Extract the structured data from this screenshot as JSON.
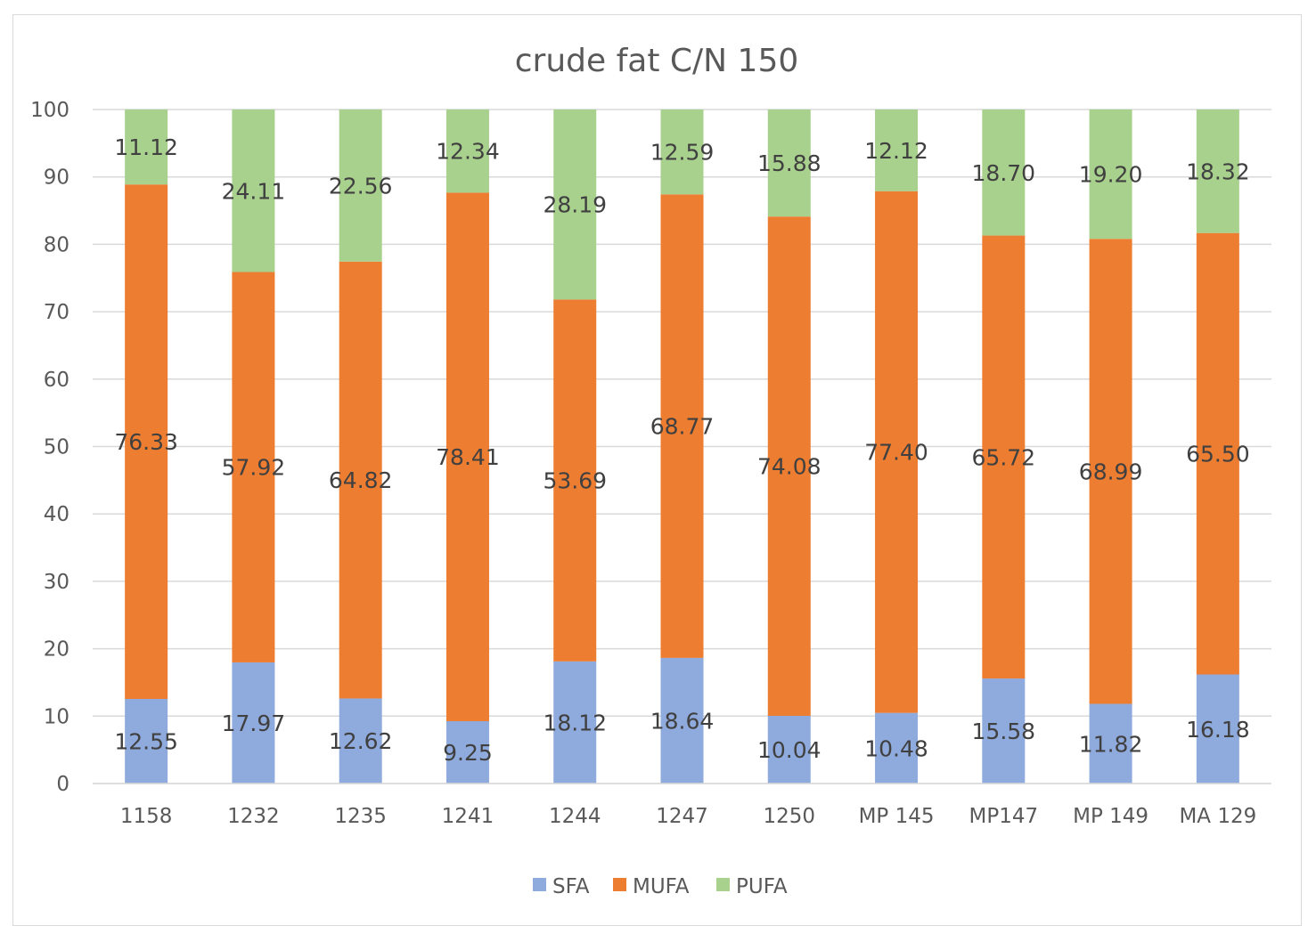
{
  "chart_data": {
    "type": "bar",
    "stacked": true,
    "title": "crude fat C/N 150",
    "xlabel": "",
    "ylabel": "",
    "ylim": [
      0,
      100
    ],
    "yticks": [
      0,
      10,
      20,
      30,
      40,
      50,
      60,
      70,
      80,
      90,
      100
    ],
    "grid": true,
    "legend_position": "bottom",
    "categories": [
      "1158",
      "1232",
      "1235",
      "1241",
      "1244",
      "1247",
      "1250",
      "MP 145",
      "MP147",
      "MP 149",
      "MA 129"
    ],
    "series": [
      {
        "name": "SFA",
        "color": "#8faadc",
        "values": [
          12.55,
          17.97,
          12.62,
          9.25,
          18.12,
          18.64,
          10.04,
          10.48,
          15.58,
          11.82,
          16.18
        ],
        "labels": [
          "12.55",
          "17.97",
          "12.62",
          "9.25",
          "18.12",
          "18.64",
          "10.04",
          "10.48",
          "15.58",
          "11.82",
          "16.18"
        ]
      },
      {
        "name": "MUFA",
        "color": "#ed7d31",
        "values": [
          76.33,
          57.92,
          64.82,
          78.41,
          53.69,
          68.77,
          74.08,
          77.4,
          65.72,
          68.99,
          65.5
        ],
        "labels": [
          "76.33",
          "57.92",
          "64.82",
          "78.41",
          "53.69",
          "68.77",
          "74.08",
          "77.40",
          "65.72",
          "68.99",
          "65.50"
        ]
      },
      {
        "name": "PUFA",
        "color": "#a9d18e",
        "values": [
          11.12,
          24.11,
          22.56,
          12.34,
          28.19,
          12.59,
          15.88,
          12.12,
          18.7,
          19.2,
          18.32
        ],
        "labels": [
          "11.12",
          "24.11",
          "22.56",
          "12.34",
          "28.19",
          "12.59",
          "15.88",
          "12.12",
          "18.70",
          "19.20",
          "18.32"
        ]
      }
    ]
  }
}
